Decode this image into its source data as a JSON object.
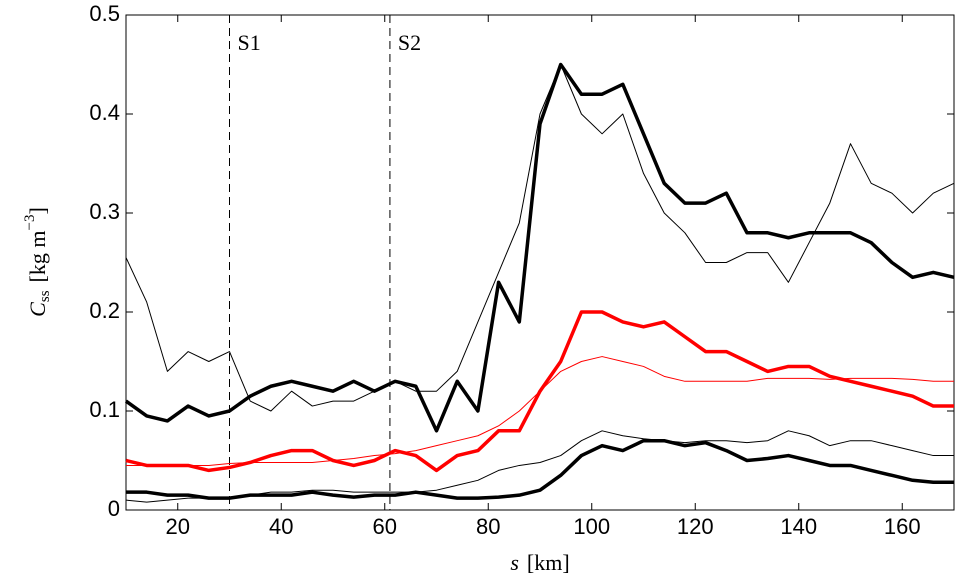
{
  "chart_data": {
    "type": "line",
    "xlabel": {
      "var": "s",
      "unit": "[km]"
    },
    "ylabel": {
      "symbol": "C",
      "sub": "ss",
      "unit": "[kg m",
      "sup": "−3",
      "close": "]"
    },
    "x": [
      10,
      14,
      18,
      22,
      26,
      30,
      34,
      38,
      42,
      46,
      50,
      54,
      58,
      62,
      66,
      70,
      74,
      78,
      82,
      86,
      90,
      94,
      98,
      102,
      106,
      110,
      114,
      118,
      122,
      126,
      130,
      134,
      138,
      142,
      146,
      150,
      154,
      158,
      162,
      166,
      170
    ],
    "series": [
      {
        "color": "#000000",
        "linewidth": 3.5,
        "values": [
          0.11,
          0.095,
          0.09,
          0.105,
          0.095,
          0.1,
          0.115,
          0.125,
          0.13,
          0.125,
          0.12,
          0.13,
          0.12,
          0.13,
          0.125,
          0.08,
          0.13,
          0.1,
          0.23,
          0.19,
          0.39,
          0.45,
          0.42,
          0.42,
          0.43,
          0.38,
          0.33,
          0.31,
          0.31,
          0.32,
          0.28,
          0.28,
          0.275,
          0.28,
          0.28,
          0.28,
          0.27,
          0.25,
          0.235,
          0.24,
          0.235
        ]
      },
      {
        "color": "#000000",
        "linewidth": 1,
        "values": [
          0.255,
          0.21,
          0.14,
          0.16,
          0.15,
          0.16,
          0.11,
          0.1,
          0.12,
          0.105,
          0.11,
          0.11,
          0.12,
          0.13,
          0.12,
          0.12,
          0.14,
          0.19,
          0.24,
          0.29,
          0.4,
          0.45,
          0.4,
          0.38,
          0.4,
          0.34,
          0.3,
          0.28,
          0.25,
          0.25,
          0.26,
          0.26,
          0.23,
          0.27,
          0.31,
          0.37,
          0.33,
          0.32,
          0.3,
          0.32,
          0.33
        ]
      },
      {
        "color": "#ff0000",
        "linewidth": 3.5,
        "values": [
          0.05,
          0.045,
          0.045,
          0.045,
          0.04,
          0.043,
          0.048,
          0.055,
          0.06,
          0.06,
          0.05,
          0.045,
          0.05,
          0.06,
          0.055,
          0.04,
          0.055,
          0.06,
          0.08,
          0.08,
          0.12,
          0.15,
          0.2,
          0.2,
          0.19,
          0.185,
          0.19,
          0.175,
          0.16,
          0.16,
          0.15,
          0.14,
          0.145,
          0.145,
          0.135,
          0.13,
          0.125,
          0.12,
          0.115,
          0.105,
          0.105
        ]
      },
      {
        "color": "#ff0000",
        "linewidth": 1,
        "values": [
          0.045,
          0.045,
          0.045,
          0.045,
          0.045,
          0.047,
          0.048,
          0.048,
          0.048,
          0.048,
          0.05,
          0.052,
          0.055,
          0.057,
          0.06,
          0.065,
          0.07,
          0.075,
          0.085,
          0.1,
          0.12,
          0.14,
          0.15,
          0.155,
          0.15,
          0.145,
          0.135,
          0.13,
          0.13,
          0.13,
          0.13,
          0.133,
          0.133,
          0.133,
          0.132,
          0.133,
          0.133,
          0.133,
          0.132,
          0.13,
          0.13
        ]
      },
      {
        "color": "#000000",
        "linewidth": 1,
        "values": [
          0.01,
          0.008,
          0.01,
          0.012,
          0.012,
          0.012,
          0.015,
          0.018,
          0.018,
          0.02,
          0.02,
          0.018,
          0.018,
          0.018,
          0.018,
          0.02,
          0.025,
          0.03,
          0.04,
          0.045,
          0.048,
          0.055,
          0.07,
          0.08,
          0.075,
          0.072,
          0.07,
          0.068,
          0.07,
          0.07,
          0.068,
          0.07,
          0.08,
          0.075,
          0.065,
          0.07,
          0.07,
          0.065,
          0.06,
          0.055,
          0.055
        ]
      },
      {
        "color": "#000000",
        "linewidth": 3.5,
        "values": [
          0.018,
          0.018,
          0.015,
          0.015,
          0.012,
          0.012,
          0.015,
          0.015,
          0.015,
          0.018,
          0.015,
          0.013,
          0.015,
          0.015,
          0.018,
          0.015,
          0.012,
          0.012,
          0.013,
          0.015,
          0.02,
          0.035,
          0.055,
          0.065,
          0.06,
          0.07,
          0.07,
          0.065,
          0.068,
          0.06,
          0.05,
          0.052,
          0.055,
          0.05,
          0.045,
          0.045,
          0.04,
          0.035,
          0.03,
          0.028,
          0.028
        ]
      }
    ],
    "annotations": [
      {
        "x": 30,
        "label": "S1"
      },
      {
        "x": 61,
        "label": "S2"
      }
    ],
    "xlim": [
      10,
      170
    ],
    "xticks": [
      20,
      40,
      60,
      80,
      100,
      120,
      140,
      160
    ],
    "ylim": [
      0,
      0.5
    ],
    "yticks": [
      0,
      0.1,
      0.2,
      0.3,
      0.4,
      0.5
    ]
  }
}
